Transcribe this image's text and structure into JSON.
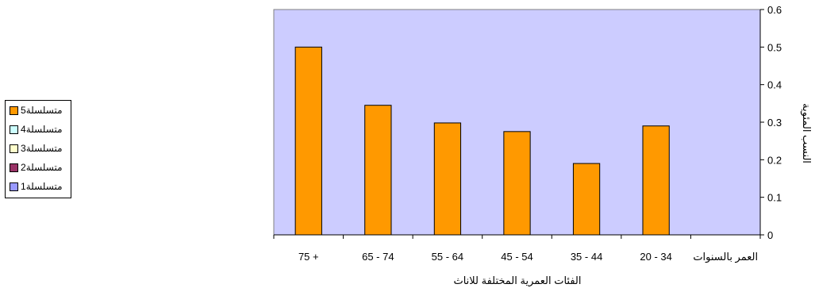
{
  "chart_data": {
    "type": "bar",
    "categories": [
      "العمر بالسنوات",
      "20 - 34",
      "35 - 44",
      "45 - 54",
      "55 - 64",
      "65 - 74",
      "75 +"
    ],
    "series": [
      {
        "name": "متسلسلة1",
        "values": [
          null,
          null,
          null,
          null,
          null,
          null,
          null
        ],
        "color": "#9999ff"
      },
      {
        "name": "متسلسلة2",
        "values": [
          null,
          null,
          null,
          null,
          null,
          null,
          null
        ],
        "color": "#993366"
      },
      {
        "name": "متسلسلة3",
        "values": [
          null,
          null,
          null,
          null,
          null,
          null,
          null
        ],
        "color": "#ffffcc"
      },
      {
        "name": "متسلسلة4",
        "values": [
          null,
          null,
          null,
          null,
          null,
          null,
          null
        ],
        "color": "#ccffff"
      },
      {
        "name": "متسلسلة5",
        "values": [
          null,
          0.29,
          0.19,
          0.275,
          0.298,
          0.345,
          0.5
        ],
        "color": "#ff9900"
      }
    ],
    "title": "",
    "xlabel": "الفئات العمرية المختلفة للاناث",
    "ylabel": "النسب المئوية",
    "ylim": [
      0,
      0.6
    ],
    "yticks": [
      "0",
      "0.1",
      "0.2",
      "0.3",
      "0.4",
      "0.5",
      "0.6"
    ],
    "x_axis_reversed": true,
    "y_axis_position": "right",
    "plot_background": "#ccccff",
    "grid": false,
    "legend_position": "left"
  },
  "legend_items": [
    {
      "label": "متسلسلة5",
      "color": "#ff9900"
    },
    {
      "label": "متسلسلة4",
      "color": "#ccffff"
    },
    {
      "label": "متسلسلة3",
      "color": "#ffffcc"
    },
    {
      "label": "متسلسلة2",
      "color": "#993366"
    },
    {
      "label": "متسلسلة1",
      "color": "#9999ff"
    }
  ]
}
